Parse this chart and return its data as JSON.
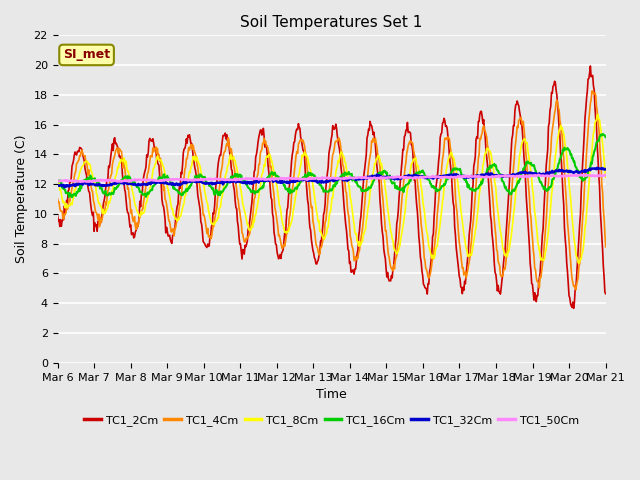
{
  "title": "Soil Temperatures Set 1",
  "xlabel": "Time",
  "ylabel": "Soil Temperature (C)",
  "ylim": [
    0,
    22
  ],
  "yticks": [
    0,
    2,
    4,
    6,
    8,
    10,
    12,
    14,
    16,
    18,
    20,
    22
  ],
  "x_labels": [
    "Mar 6",
    "Mar 7",
    "Mar 8",
    "Mar 9",
    "Mar 10",
    "Mar 11",
    "Mar 12",
    "Mar 13",
    "Mar 14",
    "Mar 15",
    "Mar 16",
    "Mar 17",
    "Mar 18",
    "Mar 19",
    "Mar 20",
    "Mar 21"
  ],
  "watermark": "SI_met",
  "series": [
    {
      "name": "TC1_2Cm",
      "color": "#cc0000"
    },
    {
      "name": "TC1_4Cm",
      "color": "#ff8800"
    },
    {
      "name": "TC1_8Cm",
      "color": "#ffff00"
    },
    {
      "name": "TC1_16Cm",
      "color": "#00cc00"
    },
    {
      "name": "TC1_32Cm",
      "color": "#0000cc"
    },
    {
      "name": "TC1_50Cm",
      "color": "#ff88ff"
    }
  ],
  "plot_bg": "#e8e8e8",
  "fig_bg": "#e8e8e8",
  "title_fontsize": 11,
  "tick_fontsize": 8,
  "label_fontsize": 9
}
